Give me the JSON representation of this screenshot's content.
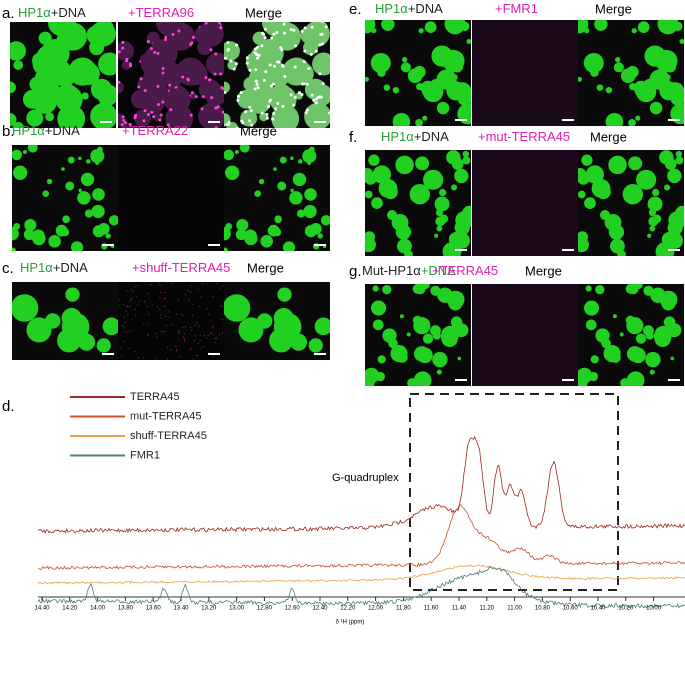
{
  "panels": [
    {
      "label": "a.",
      "parts": [
        "HP1α",
        "+DNA",
        "+TERRA96"
      ],
      "merge": "Merge"
    },
    {
      "label": "b.",
      "parts": [
        "HP1α",
        "+DNA",
        "+TERRA22"
      ],
      "merge": "Merge"
    },
    {
      "label": "c.",
      "parts": [
        "HP1α",
        "+DNA",
        "+shuff-TERRA45"
      ],
      "merge": "Merge"
    },
    {
      "label": "e.",
      "parts": [
        "HP1α",
        "+DNA",
        "+FMR1"
      ],
      "merge": "Merge"
    },
    {
      "label": "f.",
      "parts": [
        "HP1α",
        "+DNA",
        "+mut-TERRA45"
      ],
      "merge": "Merge"
    },
    {
      "label": "g.",
      "parts": [
        "Mut-HP1α",
        "+DNA",
        "+TERRA45"
      ],
      "merge": "Merge"
    }
  ],
  "spectrum": {
    "label": "d.",
    "annotation": "G-quadruplex",
    "xlabel": "δ ¹H (ppm)",
    "series": [
      {
        "name": "TERRA45",
        "color": "#9b2a22"
      },
      {
        "name": "mut-TERRA45",
        "color": "#c9502c"
      },
      {
        "name": "shuff-TERRA45",
        "color": "#eba04a"
      },
      {
        "name": "FMR1",
        "color": "#4f7f78"
      }
    ],
    "ticks": [
      "14.40",
      "14.20",
      "14.00",
      "13.80",
      "13.60",
      "13.40",
      "13.20",
      "13.00",
      "12.80",
      "12.60",
      "12.40",
      "12.20",
      "12.00",
      "11.80",
      "11.60",
      "11.40",
      "11.20",
      "11.00",
      "10.80",
      "10.60",
      "10.40",
      "10.20",
      "10.00"
    ]
  }
}
